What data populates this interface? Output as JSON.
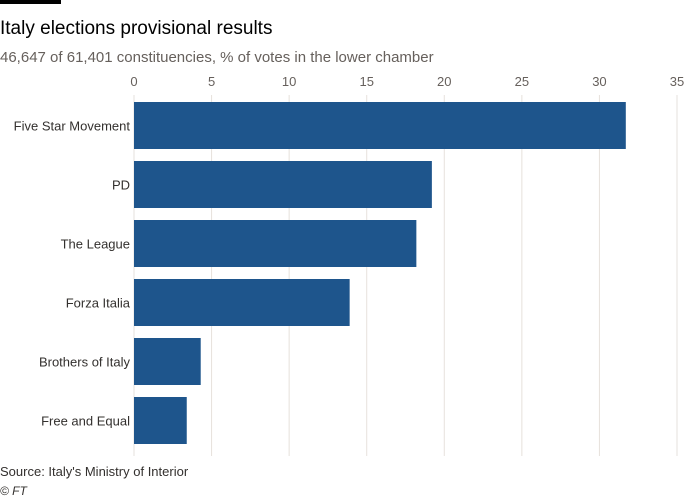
{
  "colors": {
    "bar": "#1e558c",
    "grid": "#e6e1dc",
    "axis": "#66605c"
  },
  "chart_data": {
    "type": "bar",
    "orientation": "horizontal",
    "title": "Italy elections provisional results",
    "subtitle": "46,647 of 61,401 constituencies, % of votes in the lower chamber",
    "categories": [
      "Five Star Movement",
      "PD",
      "The League",
      "Forza Italia",
      "Brothers of Italy",
      "Free and Equal"
    ],
    "values": [
      31.7,
      19.2,
      18.2,
      13.9,
      4.3,
      3.4
    ],
    "xlim": [
      0,
      35
    ],
    "xticks": [
      0,
      5,
      10,
      15,
      20,
      25,
      30,
      35
    ],
    "xaxis_position": "top",
    "grid": true,
    "xlabel": "",
    "ylabel": ""
  },
  "footer": {
    "source": "Source: Italy's Ministry of Interior",
    "credit": "© FT"
  }
}
